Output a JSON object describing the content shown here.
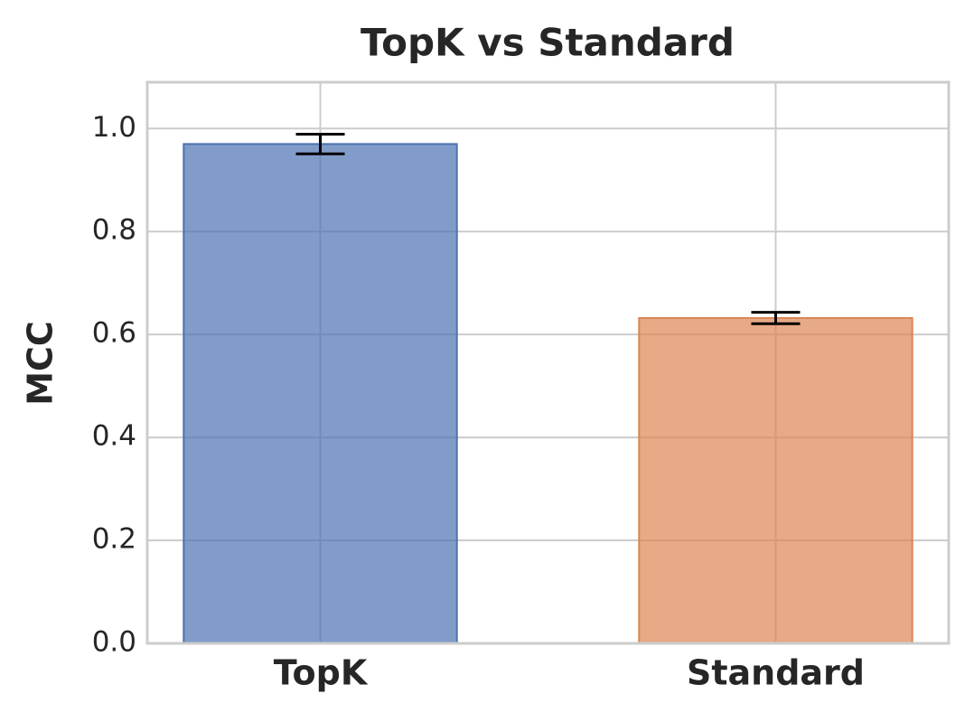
{
  "chart_data": {
    "type": "bar",
    "title": "TopK vs Standard",
    "ylabel": "MCC",
    "categories": [
      "TopK",
      "Standard"
    ],
    "values": [
      0.97,
      0.632
    ],
    "errors": [
      0.019,
      0.011
    ],
    "colors": [
      "#4c72b0",
      "#dd8452"
    ],
    "ylim": [
      0,
      1.09
    ],
    "yticks": [
      {
        "value": 0,
        "label": "0.0"
      },
      0.2,
      0.4,
      0.6,
      0.8,
      {
        "value": 1,
        "label": "1.0"
      }
    ],
    "grid": true
  }
}
